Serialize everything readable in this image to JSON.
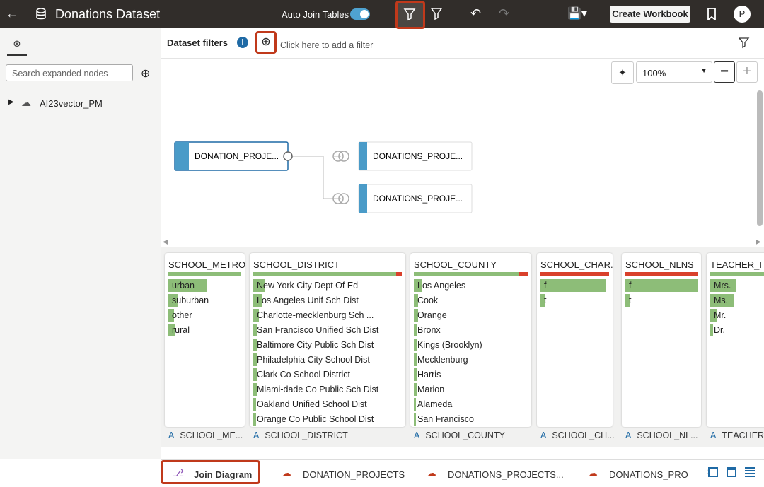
{
  "header": {
    "title": "Donations Dataset",
    "auto_join": "Auto Join Tables",
    "create_workbook": "Create Workbook",
    "avatar": "P"
  },
  "filters": {
    "label": "Dataset filters",
    "placeholder": "Click here to add a filter"
  },
  "sidebar": {
    "search_placeholder": "Search expanded nodes",
    "nodes": [
      "AI23vector_PM"
    ]
  },
  "zoom": "100%",
  "diagram": {
    "nodes": [
      "DONATION_PROJE...",
      "DONATIONS_PROJE...",
      "DONATIONS_PROJE..."
    ]
  },
  "columns": [
    {
      "title": "SCHOOL_METRO",
      "values": [
        "urban",
        "suburban",
        "other",
        "rural"
      ],
      "footer": "SCHOOL_ME..."
    },
    {
      "title": "SCHOOL_DISTRICT",
      "values": [
        "New York City Dept Of Ed",
        "Los Angeles Unif Sch Dist",
        "Charlotte-mecklenburg Sch ...",
        "San Francisco Unified Sch Dist",
        "Baltimore City Public Sch Dist",
        "Philadelphia City School Dist",
        "Clark Co School District",
        "Miami-dade Co Public Sch Dist",
        "Oakland Unified School Dist",
        "Orange Co Public School Dist"
      ],
      "footer": "SCHOOL_DISTRICT"
    },
    {
      "title": "SCHOOL_COUNTY",
      "values": [
        "Los Angeles",
        "Cook",
        "Orange",
        "Bronx",
        "Kings (Brooklyn)",
        "Mecklenburg",
        "Harris",
        "Marion",
        "Alameda",
        "San Francisco"
      ],
      "footer": "SCHOOL_COUNTY"
    },
    {
      "title": "SCHOOL_CHAR...",
      "values": [
        "f",
        "t"
      ],
      "footer": "SCHOOL_CH..."
    },
    {
      "title": "SCHOOL_NLNS",
      "values": [
        "f",
        "t"
      ],
      "footer": "SCHOOL_NL..."
    },
    {
      "title": "TEACHER_I",
      "values": [
        "Mrs.",
        "Ms.",
        "Mr.",
        "Dr."
      ],
      "footer": "TEACHER"
    }
  ],
  "tabs": [
    "Join Diagram",
    "DONATION_PROJECTS",
    "DONATIONS_PROJECTS...",
    "DONATIONS_PRO"
  ]
}
